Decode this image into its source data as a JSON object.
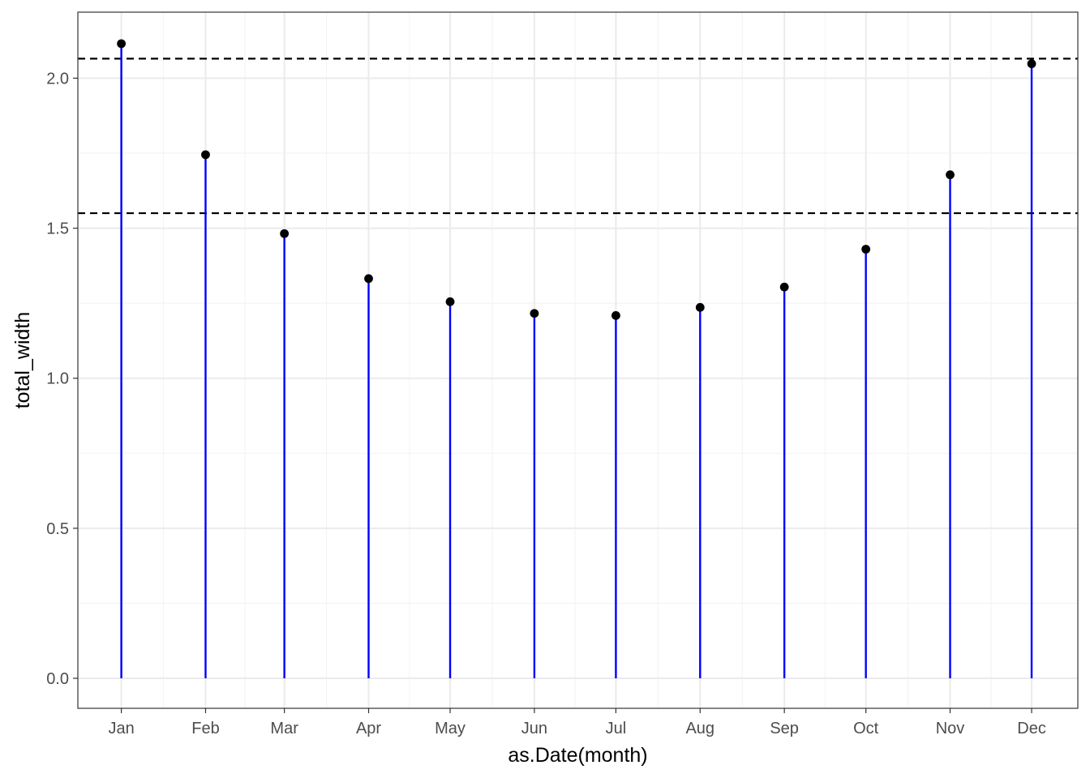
{
  "chart_data": {
    "type": "lollipop",
    "xlabel": "as.Date(month)",
    "ylabel": "total_width",
    "categories": [
      "Jan",
      "Feb",
      "Mar",
      "Apr",
      "May",
      "Jun",
      "Jul",
      "Aug",
      "Sep",
      "Oct",
      "Nov",
      "Dec"
    ],
    "x": [
      "2000-01-01",
      "2000-02-01",
      "2000-03-01",
      "2000-04-01",
      "2000-05-01",
      "2000-06-01",
      "2000-07-01",
      "2000-08-01",
      "2000-09-01",
      "2000-10-01",
      "2000-11-01",
      "2000-12-01"
    ],
    "values": [
      2.115,
      1.745,
      1.482,
      1.332,
      1.255,
      1.216,
      1.209,
      1.236,
      1.304,
      1.43,
      1.678,
      2.048
    ],
    "xlim": [
      "1999-12-16",
      "2000-12-18"
    ],
    "ylim": [
      -0.1,
      2.22
    ],
    "yticks": [
      0.0,
      0.5,
      1.0,
      1.5,
      2.0
    ],
    "ytick_labels": [
      "0.0",
      "0.5",
      "1.0",
      "1.5",
      "2.0"
    ],
    "hlines": [
      2.065,
      1.55
    ],
    "grid": true,
    "theme": "bw",
    "colors": {
      "stem": "#0000ff",
      "point": "#000000",
      "hline": "#000000",
      "grid_major": "#ebebeb",
      "grid_minor": "#f4f4f4",
      "panel_border": "#333333",
      "tick_text": "#4d4d4d"
    }
  }
}
